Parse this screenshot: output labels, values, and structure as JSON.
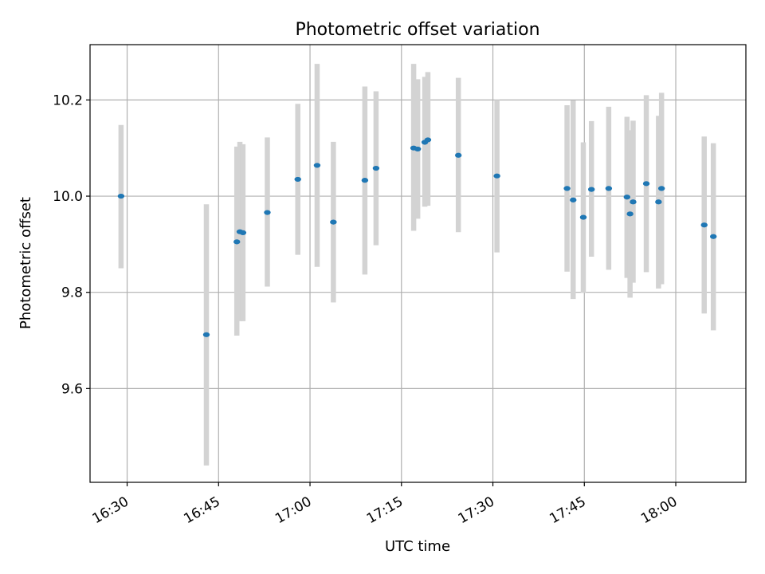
{
  "chart_data": {
    "type": "scatter",
    "title": "Photometric offset variation",
    "xlabel": "UTC time",
    "ylabel": "Photometric offset",
    "x_ticks": [
      "16:30",
      "16:45",
      "17:00",
      "17:15",
      "17:30",
      "17:45",
      "18:00"
    ],
    "y_ticks": [
      "9.6",
      "9.8",
      "10.0",
      "10.2"
    ],
    "xlim": [
      "16:23:55",
      "18:11:30"
    ],
    "ylim": [
      9.405,
      10.315
    ],
    "grid": true,
    "errorbar_color": "#d3d3d3",
    "point_color": "#1f77b4",
    "points": [
      {
        "time": "16:29:00",
        "value": 10.0,
        "low": 9.85,
        "high": 10.148
      },
      {
        "time": "16:43:00",
        "value": 9.712,
        "low": 9.44,
        "high": 9.983
      },
      {
        "time": "16:48:00",
        "value": 9.905,
        "low": 9.71,
        "high": 10.103
      },
      {
        "time": "16:48:30",
        "value": 9.926,
        "low": 9.74,
        "high": 10.113
      },
      {
        "time": "16:49:00",
        "value": 9.924,
        "low": 9.74,
        "high": 10.108
      },
      {
        "time": "16:53:00",
        "value": 9.966,
        "low": 9.812,
        "high": 10.122
      },
      {
        "time": "16:58:00",
        "value": 10.035,
        "low": 9.878,
        "high": 10.192
      },
      {
        "time": "17:01:10",
        "value": 10.064,
        "low": 9.853,
        "high": 10.275
      },
      {
        "time": "17:03:50",
        "value": 9.946,
        "low": 9.779,
        "high": 10.113
      },
      {
        "time": "17:09:00",
        "value": 10.033,
        "low": 9.837,
        "high": 10.228
      },
      {
        "time": "17:10:50",
        "value": 10.058,
        "low": 9.898,
        "high": 10.218
      },
      {
        "time": "17:17:00",
        "value": 10.1,
        "low": 9.928,
        "high": 10.275
      },
      {
        "time": "17:17:40",
        "value": 10.098,
        "low": 9.953,
        "high": 10.243
      },
      {
        "time": "17:18:50",
        "value": 10.112,
        "low": 9.978,
        "high": 10.248
      },
      {
        "time": "17:19:20",
        "value": 10.117,
        "low": 9.98,
        "high": 10.258
      },
      {
        "time": "17:24:20",
        "value": 10.085,
        "low": 9.925,
        "high": 10.246
      },
      {
        "time": "17:30:40",
        "value": 10.042,
        "low": 9.883,
        "high": 10.2
      },
      {
        "time": "17:42:10",
        "value": 10.016,
        "low": 9.843,
        "high": 10.189
      },
      {
        "time": "17:43:10",
        "value": 9.992,
        "low": 9.786,
        "high": 10.199
      },
      {
        "time": "17:44:50",
        "value": 9.956,
        "low": 9.799,
        "high": 10.112
      },
      {
        "time": "17:46:10",
        "value": 10.014,
        "low": 9.874,
        "high": 10.156
      },
      {
        "time": "17:49:00",
        "value": 10.016,
        "low": 9.847,
        "high": 10.186
      },
      {
        "time": "17:52:00",
        "value": 9.998,
        "low": 9.83,
        "high": 10.165
      },
      {
        "time": "17:52:30",
        "value": 9.963,
        "low": 9.789,
        "high": 10.137
      },
      {
        "time": "17:53:00",
        "value": 9.988,
        "low": 9.82,
        "high": 10.157
      },
      {
        "time": "17:55:10",
        "value": 10.026,
        "low": 9.842,
        "high": 10.21
      },
      {
        "time": "17:57:10",
        "value": 9.988,
        "low": 9.808,
        "high": 10.167
      },
      {
        "time": "17:57:40",
        "value": 10.016,
        "low": 9.817,
        "high": 10.215
      },
      {
        "time": "18:04:40",
        "value": 9.94,
        "low": 9.756,
        "high": 10.124
      },
      {
        "time": "18:06:10",
        "value": 9.916,
        "low": 9.721,
        "high": 10.11
      }
    ]
  }
}
